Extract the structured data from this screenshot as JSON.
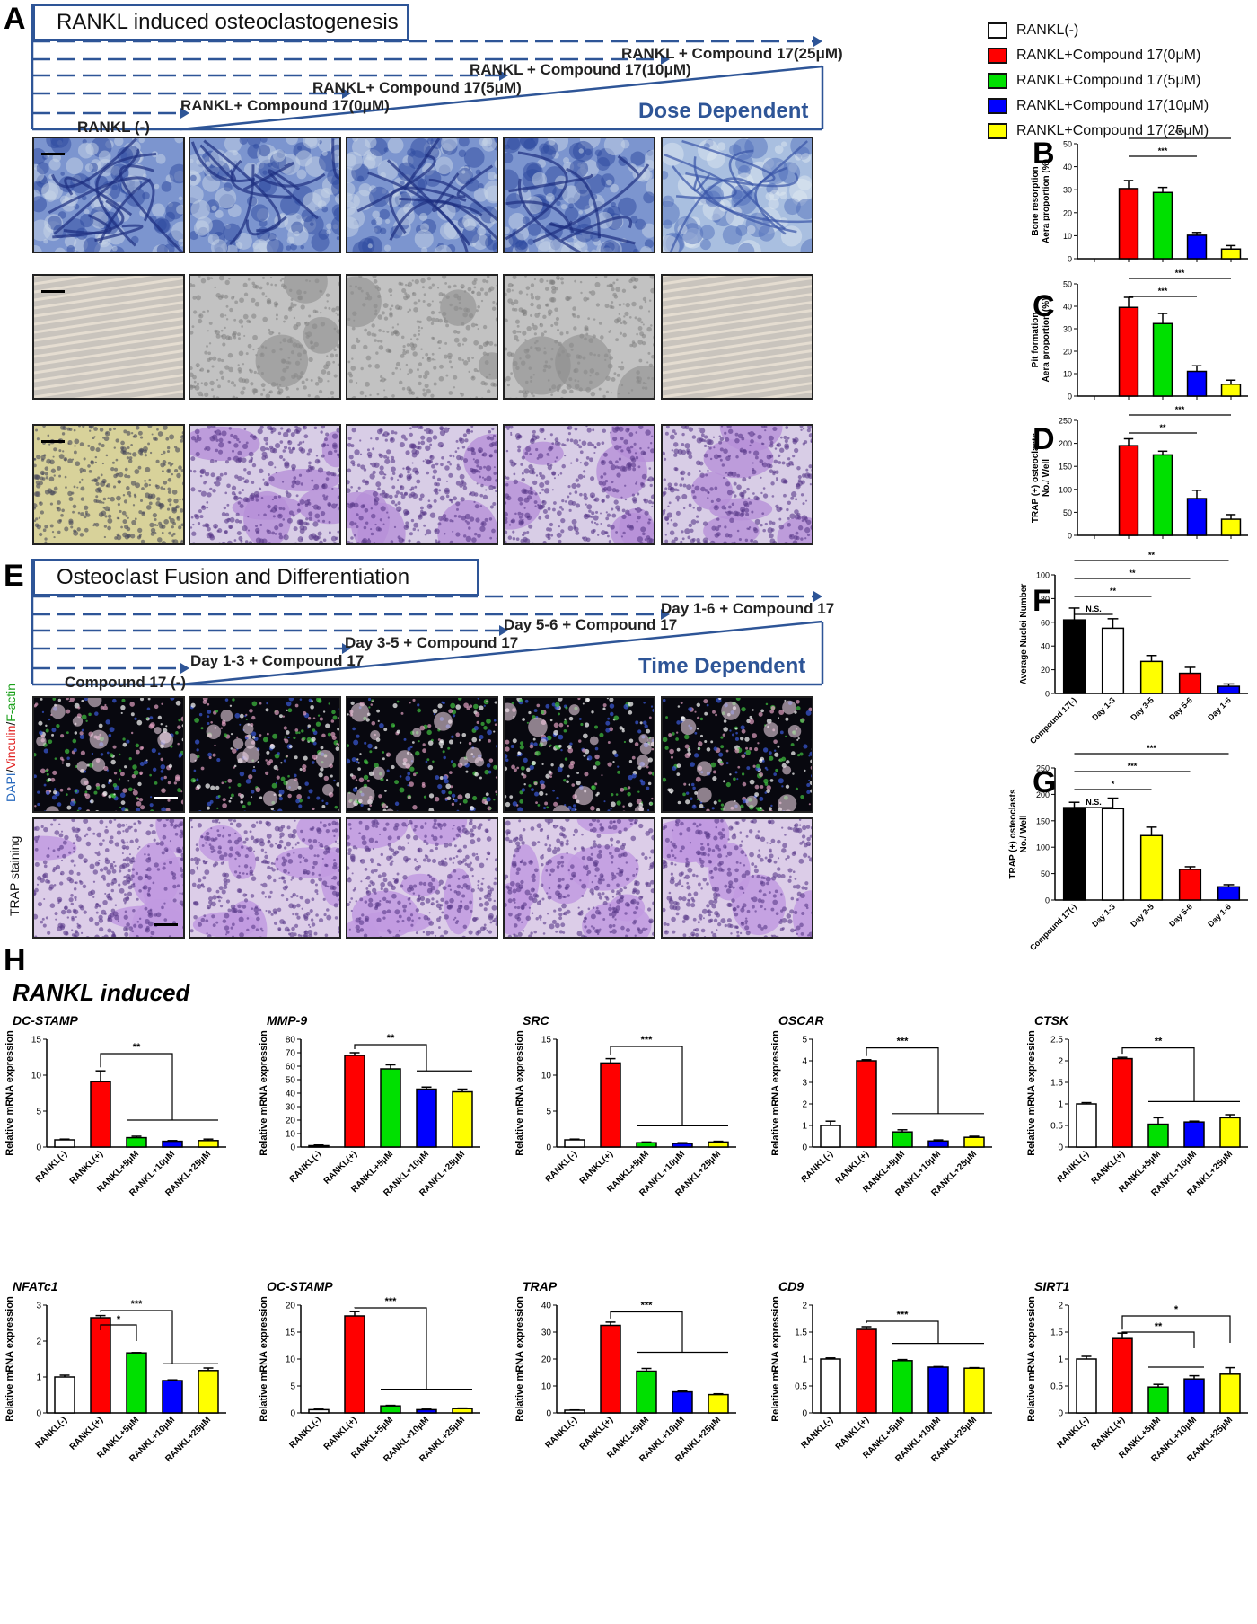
{
  "figure": {
    "panels": {
      "A": "A",
      "B": "B",
      "C": "C",
      "D": "D",
      "E": "E",
      "F": "F",
      "G": "G",
      "H": "H"
    }
  },
  "scheme_a": {
    "title": "RANKL induced osteoclastogenesis",
    "labels": [
      "RANKL (-)",
      "RANKL+ Compound 17(0μM)",
      "RANKL+ Compound 17(5μM)",
      "RANKL + Compound 17(10μM)",
      "RANKL + Compound 17(25μM)"
    ],
    "dependence": "Dose Dependent"
  },
  "scheme_e": {
    "title": "Osteoclast Fusion and Differentiation",
    "labels": [
      "Compound 17 (-)",
      "Day 1-3 + Compound 17",
      "Day 3-5 + Compound 17",
      "Day 5-6 + Compound 17",
      "Day 1-6 + Compound 17"
    ],
    "dependence": "Time Dependent"
  },
  "legend": {
    "items": [
      {
        "label": "RANKL(-)",
        "color": "#ffffff"
      },
      {
        "label": "RANKL+Compound 17(0μM)",
        "color": "#ff0000"
      },
      {
        "label": "RANKL+Compound 17(5μM)",
        "color": "#00e000"
      },
      {
        "label": "RANKL+Compound 17(10μM)",
        "color": "#0000ff"
      },
      {
        "label": "RANKL+Compound 17(25μM)",
        "color": "#ffff00"
      }
    ]
  },
  "micro": {
    "row_e_dapi": [
      "DAPI",
      "/",
      "Vinculin",
      "/",
      "F-actin"
    ],
    "row_e_trap": "TRAP staining",
    "palette": {
      "blue": "#3f63b5",
      "gray": "#9a9a9a",
      "purple": "#9a6ac8",
      "fluor": "#101018",
      "trap": "#b78ad6"
    }
  },
  "colors": {
    "scheme": "#2e5597",
    "red": "#ff0000",
    "green": "#00e000",
    "blue": "#0000ff",
    "yellow": "#ffff00",
    "black": "#000000",
    "white": "#ffffff"
  },
  "chart_data": [
    {
      "id": "B",
      "type": "bar",
      "ylabel": [
        "Bone resorption",
        "Aera proportion (%)"
      ],
      "ylim": [
        0,
        50
      ],
      "yticks": [
        0,
        10,
        20,
        30,
        40,
        50
      ],
      "categories": [
        "",
        "",
        "",
        "",
        ""
      ],
      "colors": [
        "#ffffff",
        "#ff0000",
        "#00e000",
        "#0000ff",
        "#ffff00"
      ],
      "values": [
        0,
        30.5,
        28.8,
        10.2,
        4.2
      ],
      "errors": [
        0,
        3.5,
        2.2,
        1.2,
        1.5
      ],
      "sig": [
        {
          "from": 1,
          "to": 4,
          "label": "***"
        },
        {
          "from": 1,
          "to": 3,
          "label": "***"
        }
      ]
    },
    {
      "id": "C",
      "type": "bar",
      "ylabel": [
        "Pit formation",
        "Aera proportion (%)"
      ],
      "ylim": [
        0,
        50
      ],
      "yticks": [
        0,
        10,
        20,
        30,
        40,
        50
      ],
      "categories": [
        "",
        "",
        "",
        "",
        ""
      ],
      "colors": [
        "#ffffff",
        "#ff0000",
        "#00e000",
        "#0000ff",
        "#ffff00"
      ],
      "values": [
        0,
        39.5,
        32.3,
        11.0,
        5.3
      ],
      "errors": [
        0,
        4.5,
        4.5,
        2.5,
        1.8
      ],
      "sig": [
        {
          "from": 1,
          "to": 4,
          "label": "***"
        },
        {
          "from": 1,
          "to": 3,
          "label": "***"
        }
      ]
    },
    {
      "id": "D",
      "type": "bar",
      "ylabel": [
        "TRAP (+) osteoclasts",
        "No./ Well"
      ],
      "ylim": [
        0,
        250
      ],
      "yticks": [
        0,
        50,
        100,
        150,
        200,
        250
      ],
      "categories": [
        "",
        "",
        "",
        "",
        ""
      ],
      "colors": [
        "#ffffff",
        "#ff0000",
        "#00e000",
        "#0000ff",
        "#ffff00"
      ],
      "values": [
        0,
        195,
        175,
        80,
        35
      ],
      "errors": [
        0,
        15,
        8,
        18,
        10
      ],
      "sig": [
        {
          "from": 1,
          "to": 4,
          "label": "***"
        },
        {
          "from": 1,
          "to": 3,
          "label": "**"
        }
      ]
    },
    {
      "id": "F",
      "type": "bar",
      "ylabel": [
        "Average Nuclei Number"
      ],
      "ylim": [
        0,
        100
      ],
      "yticks": [
        0,
        20,
        40,
        60,
        80,
        100
      ],
      "categories": [
        "Compound 17(-)",
        "Day 1-3",
        "Day 3-5",
        "Day 5-6",
        "Day 1-6"
      ],
      "colors": [
        "#000000",
        "#ffffff",
        "#ffff00",
        "#ff0000",
        "#0000ff"
      ],
      "values": [
        62,
        55,
        27,
        17,
        6
      ],
      "errors": [
        10,
        8,
        5,
        5,
        2
      ],
      "sig": [
        {
          "from": 0,
          "to": 4,
          "label": "**"
        },
        {
          "from": 0,
          "to": 3,
          "label": "**"
        },
        {
          "from": 0,
          "to": 2,
          "label": "**"
        },
        {
          "from": 0,
          "to": 1,
          "label": "N.S."
        }
      ]
    },
    {
      "id": "G",
      "type": "bar",
      "ylabel": [
        "TRAP (+) osteoclasts",
        "No./ Well"
      ],
      "ylim": [
        0,
        250
      ],
      "yticks": [
        0,
        50,
        100,
        150,
        200,
        250
      ],
      "categories": [
        "Compound 17(-)",
        "Day 1-3",
        "Day 3-5",
        "Day 5-6",
        "Day 1-6"
      ],
      "colors": [
        "#000000",
        "#ffffff",
        "#ffff00",
        "#ff0000",
        "#0000ff"
      ],
      "values": [
        175,
        173,
        122,
        58,
        25
      ],
      "errors": [
        10,
        20,
        16,
        5,
        4
      ],
      "sig": [
        {
          "from": 0,
          "to": 4,
          "label": "***"
        },
        {
          "from": 0,
          "to": 3,
          "label": "***"
        },
        {
          "from": 0,
          "to": 2,
          "label": "*"
        },
        {
          "from": 0,
          "to": 1,
          "label": "N.S."
        }
      ]
    },
    {
      "id": "DC-STAMP",
      "type": "bar",
      "title": "DC-STAMP",
      "ylabel": [
        "Relative mRNA expression"
      ],
      "ylim": [
        0,
        15
      ],
      "yticks": [
        0,
        5,
        10,
        15
      ],
      "categories": [
        "RANKL(-)",
        "RANKL(+)",
        "RANKL+5μM",
        "RANKL+10μM",
        "RANKL+25μM"
      ],
      "colors": [
        "#ffffff",
        "#ff0000",
        "#00e000",
        "#0000ff",
        "#ffff00"
      ],
      "values": [
        1.0,
        9.1,
        1.3,
        0.8,
        0.9
      ],
      "errors": [
        0.1,
        1.5,
        0.2,
        0.1,
        0.2
      ],
      "bracket": {
        "from": 1,
        "to": 3,
        "bar_from": 2,
        "bar_to": 4,
        "label": "**",
        "y": 13
      }
    },
    {
      "id": "MMP-9",
      "type": "bar",
      "title": "MMP-9",
      "ylabel": [
        "Relative mRNA expression"
      ],
      "ylim": [
        0,
        80
      ],
      "yticks": [
        0,
        10,
        20,
        30,
        40,
        50,
        60,
        70,
        80
      ],
      "categories": [
        "RANKL(-)",
        "RANKL(+)",
        "RANKL+5μM",
        "RANKL+10μM",
        "RANKL+25μM"
      ],
      "colors": [
        "#ffffff",
        "#ff0000",
        "#00e000",
        "#0000ff",
        "#ffff00"
      ],
      "values": [
        1,
        68,
        58,
        43,
        41
      ],
      "errors": [
        0.5,
        2,
        3,
        1.5,
        2
      ],
      "bracket": {
        "from": 1,
        "to": 3,
        "bar_from": 3,
        "bar_to": 4,
        "label": "**",
        "y": 76
      }
    },
    {
      "id": "SRC",
      "type": "bar",
      "title": "SRC",
      "ylabel": [
        "Relative mRNA expression"
      ],
      "ylim": [
        0,
        15
      ],
      "yticks": [
        0,
        5,
        10,
        15
      ],
      "categories": [
        "RANKL(-)",
        "RANKL(+)",
        "RANKL+5μM",
        "RANKL+10μM",
        "RANKL+25μM"
      ],
      "colors": [
        "#ffffff",
        "#ff0000",
        "#00e000",
        "#0000ff",
        "#ffff00"
      ],
      "values": [
        1.0,
        11.7,
        0.6,
        0.5,
        0.7
      ],
      "errors": [
        0.1,
        0.6,
        0.1,
        0.1,
        0.1
      ],
      "bracket": {
        "from": 1,
        "to": 3,
        "bar_from": 2,
        "bar_to": 4,
        "label": "***",
        "y": 14
      }
    },
    {
      "id": "OSCAR",
      "type": "bar",
      "title": "OSCAR",
      "ylabel": [
        "Relative mRNA expression"
      ],
      "ylim": [
        0,
        5
      ],
      "yticks": [
        0,
        1,
        2,
        3,
        4,
        5
      ],
      "categories": [
        "RANKL(-)",
        "RANKL(+)",
        "RANKL+5μM",
        "RANKL+10μM",
        "RANKL+25μM"
      ],
      "colors": [
        "#ffffff",
        "#ff0000",
        "#00e000",
        "#0000ff",
        "#ffff00"
      ],
      "values": [
        1.0,
        4.0,
        0.7,
        0.28,
        0.45
      ],
      "errors": [
        0.2,
        0.05,
        0.1,
        0.05,
        0.05
      ],
      "bracket": {
        "from": 1,
        "to": 3,
        "bar_from": 2,
        "bar_to": 4,
        "label": "***",
        "y": 4.6
      }
    },
    {
      "id": "CTSK",
      "type": "bar",
      "title": "CTSK",
      "ylabel": [
        "Relative mRNA expression"
      ],
      "ylim": [
        0,
        2.5
      ],
      "yticks": [
        0,
        0.5,
        1.0,
        1.5,
        2.0,
        2.5
      ],
      "categories": [
        "RANKL(-)",
        "RANKL(+)",
        "RANKL+5μM",
        "RANKL+10μM",
        "RANKL+25μM"
      ],
      "colors": [
        "#ffffff",
        "#ff0000",
        "#00e000",
        "#0000ff",
        "#ffff00"
      ],
      "values": [
        1.0,
        2.05,
        0.53,
        0.58,
        0.68
      ],
      "errors": [
        0.03,
        0.03,
        0.15,
        0.02,
        0.07
      ],
      "bracket": {
        "from": 1,
        "to": 3,
        "bar_from": 2,
        "bar_to": 4,
        "label": "**",
        "y": 2.3
      }
    },
    {
      "id": "NFATc1",
      "type": "bar",
      "title": "NFATc1",
      "ylabel": [
        "Relative mRNA expression"
      ],
      "ylim": [
        0,
        3
      ],
      "yticks": [
        0,
        1,
        2,
        3
      ],
      "categories": [
        "RANKL(-)",
        "RANKL(+)",
        "RANKL+5μM",
        "RANKL+10μM",
        "RANKL+25μM"
      ],
      "colors": [
        "#ffffff",
        "#ff0000",
        "#00e000",
        "#0000ff",
        "#ffff00"
      ],
      "values": [
        1.0,
        2.65,
        1.67,
        0.9,
        1.18
      ],
      "errors": [
        0.05,
        0.06,
        0.01,
        0.02,
        0.07
      ],
      "bracket": {
        "from": 1,
        "to": 3,
        "bar_from": 3,
        "bar_to": 4,
        "label": "***",
        "y": 2.85
      },
      "extra": {
        "from": 1,
        "to": 2,
        "label": "*",
        "y": 2.45
      }
    },
    {
      "id": "OC-STAMP",
      "type": "bar",
      "title": "OC-STAMP",
      "ylabel": [
        "Relative mRNA expression"
      ],
      "ylim": [
        0,
        20
      ],
      "yticks": [
        0,
        5,
        10,
        15,
        20
      ],
      "categories": [
        "RANKL(-)",
        "RANKL(+)",
        "RANKL+5μM",
        "RANKL+10μM",
        "RANKL+25μM"
      ],
      "colors": [
        "#ffffff",
        "#ff0000",
        "#00e000",
        "#0000ff",
        "#ffff00"
      ],
      "values": [
        0.6,
        18.0,
        1.3,
        0.6,
        0.8
      ],
      "errors": [
        0.1,
        0.8,
        0.1,
        0.1,
        0.1
      ],
      "bracket": {
        "from": 1,
        "to": 3,
        "bar_from": 2,
        "bar_to": 4,
        "label": "***",
        "y": 19.5
      }
    },
    {
      "id": "TRAP",
      "type": "bar",
      "title": "TRAP",
      "ylabel": [
        "Relative mRNA expression"
      ],
      "ylim": [
        0,
        40
      ],
      "yticks": [
        0,
        10,
        20,
        30,
        40
      ],
      "categories": [
        "RANKL(-)",
        "RANKL(+)",
        "RANKL+5μM",
        "RANKL+10μM",
        "RANKL+25μM"
      ],
      "colors": [
        "#ffffff",
        "#ff0000",
        "#00e000",
        "#0000ff",
        "#ffff00"
      ],
      "values": [
        1.0,
        32.5,
        15.5,
        7.8,
        6.8
      ],
      "errors": [
        0.1,
        1.2,
        1.0,
        0.3,
        0.3
      ],
      "bracket": {
        "from": 1,
        "to": 3,
        "bar_from": 2,
        "bar_to": 4,
        "label": "***",
        "y": 37.5
      }
    },
    {
      "id": "CD9",
      "type": "bar",
      "title": "CD9",
      "ylabel": [
        "Relative mRNA expression"
      ],
      "ylim": [
        0,
        2.0
      ],
      "yticks": [
        0,
        0.5,
        1.0,
        1.5,
        2.0
      ],
      "categories": [
        "RANKL(-)",
        "RANKL(+)",
        "RANKL+5μM",
        "RANKL+10μM",
        "RANKL+25μM"
      ],
      "colors": [
        "#ffffff",
        "#ff0000",
        "#00e000",
        "#0000ff",
        "#ffff00"
      ],
      "values": [
        1.0,
        1.55,
        0.97,
        0.85,
        0.83
      ],
      "errors": [
        0.02,
        0.05,
        0.02,
        0.01,
        0.01
      ],
      "bracket": {
        "from": 1,
        "to": 3,
        "bar_from": 2,
        "bar_to": 4,
        "label": "***",
        "y": 1.7
      }
    },
    {
      "id": "SIRT1",
      "type": "bar",
      "title": "SIRT1",
      "ylabel": [
        "Relative mRNA expression"
      ],
      "ylim": [
        0,
        2.0
      ],
      "yticks": [
        0,
        0.5,
        1.0,
        1.5,
        2.0
      ],
      "categories": [
        "RANKL(-)",
        "RANKL(+)",
        "RANKL+5μM",
        "RANKL+10μM",
        "RANKL+25μM"
      ],
      "colors": [
        "#ffffff",
        "#ff0000",
        "#00e000",
        "#0000ff",
        "#ffff00"
      ],
      "values": [
        1.0,
        1.38,
        0.48,
        0.63,
        0.72
      ],
      "errors": [
        0.05,
        0.1,
        0.05,
        0.06,
        0.12
      ],
      "bracket": {
        "from": 1,
        "to": 4,
        "label": "*",
        "y": 1.8
      },
      "extra": {
        "from": 1,
        "to": 3,
        "label": "**",
        "y": 1.5
      },
      "extra_bar": {
        "from": 2,
        "to": 3,
        "y": 0.85
      }
    }
  ],
  "h_section": {
    "title": "RANKL induced"
  }
}
